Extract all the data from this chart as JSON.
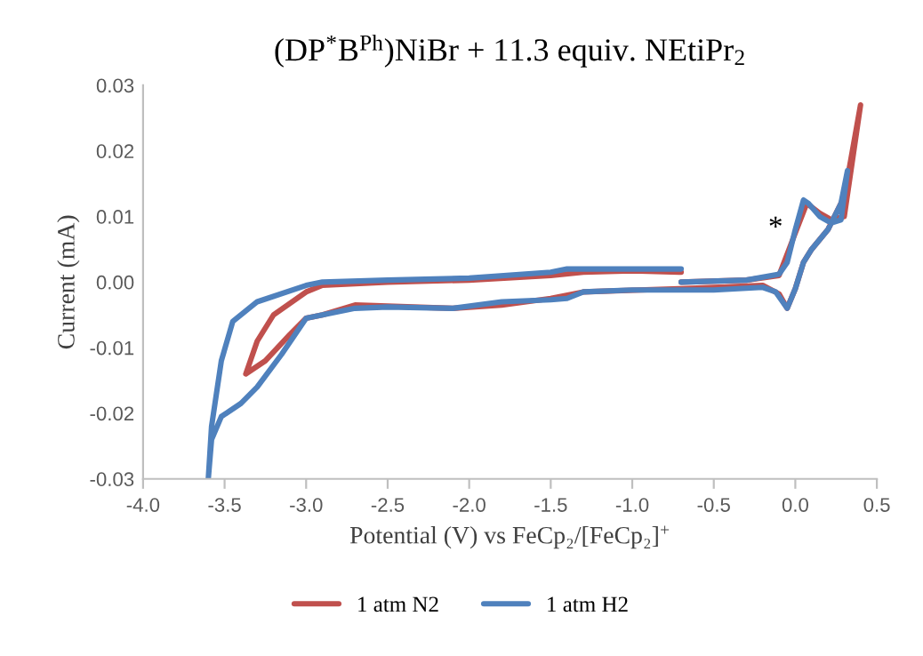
{
  "chart_data": {
    "type": "line",
    "title": "(DP$^{*}$B$^{Ph}$)NiBr + 11.3 equiv. NEtiPr$_{2}$",
    "xlabel": "Potential (V) vs FeCp₂/[FeCp₂]$^{+}$",
    "ylabel": "Current (mA)",
    "xlim": [
      -4.0,
      0.5
    ],
    "ylim": [
      -0.03,
      0.03
    ],
    "xticks": [
      {
        "value": -4.0,
        "label": "-4.0"
      },
      {
        "value": -3.5,
        "label": "-3.5"
      },
      {
        "value": -3.0,
        "label": "-3.0"
      },
      {
        "value": -2.5,
        "label": "-2.5"
      },
      {
        "value": -2.0,
        "label": "-2.0"
      },
      {
        "value": -1.5,
        "label": "-1.5"
      },
      {
        "value": -1.0,
        "label": "-1.0"
      },
      {
        "value": -0.5,
        "label": "-0.5"
      },
      {
        "value": 0.0,
        "label": "0.0"
      },
      {
        "value": 0.5,
        "label": "0.5"
      }
    ],
    "yticks": [
      {
        "value": -0.03,
        "label": "-0.03"
      },
      {
        "value": -0.02,
        "label": "-0.02"
      },
      {
        "value": -0.01,
        "label": "-0.01"
      },
      {
        "value": 0.0,
        "label": "0.00"
      },
      {
        "value": 0.01,
        "label": "0.01"
      },
      {
        "value": 0.02,
        "label": "0.02"
      },
      {
        "value": 0.03,
        "label": "0.03"
      }
    ],
    "grid": false,
    "legend": "bottom",
    "marker": "none",
    "line_style": "solid",
    "annotations": [
      "*"
    ],
    "series": [
      {
        "name": "1 atm N2",
        "color": "#c0504d",
        "x": [
          -0.7,
          -1.0,
          -1.3,
          -1.5,
          -2.0,
          -2.5,
          -2.9,
          -3.0,
          -3.2,
          -3.3,
          -3.37,
          -3.25,
          -3.1,
          -3.0,
          -2.9,
          -2.7,
          -2.1,
          -1.8,
          -1.5,
          -1.3,
          -0.7,
          -0.2,
          -0.1,
          -0.05,
          0.0,
          0.05,
          0.1,
          0.2,
          0.3,
          0.4,
          0.3,
          0.22,
          0.15,
          0.07,
          0.0,
          -0.1,
          -0.3,
          -0.7
        ],
        "values": [
          0.0015,
          0.0017,
          0.0015,
          0.001,
          0.0003,
          0.0,
          -0.0005,
          -0.0015,
          -0.005,
          -0.009,
          -0.014,
          -0.012,
          -0.008,
          -0.0055,
          -0.005,
          -0.0035,
          -0.004,
          -0.0035,
          -0.0025,
          -0.0015,
          -0.001,
          -0.0005,
          -0.0018,
          -0.004,
          -0.001,
          0.003,
          0.005,
          0.008,
          0.013,
          0.027,
          0.01,
          0.0095,
          0.0105,
          0.012,
          0.0075,
          0.001,
          0.0003,
          0.0
        ]
      },
      {
        "name": "1 atm H2",
        "color": "#4f81bd",
        "x": [
          -0.7,
          -1.0,
          -1.4,
          -1.5,
          -2.0,
          -2.5,
          -2.9,
          -3.0,
          -3.3,
          -3.45,
          -3.52,
          -3.58,
          -3.6,
          -3.58,
          -3.52,
          -3.4,
          -3.3,
          -3.15,
          -3.0,
          -2.9,
          -2.7,
          -2.5,
          -2.1,
          -1.8,
          -1.5,
          -1.4,
          -1.3,
          -1.0,
          -0.5,
          -0.2,
          -0.12,
          -0.05,
          0.0,
          0.05,
          0.1,
          0.2,
          0.28,
          0.32,
          0.28,
          0.22,
          0.15,
          0.08,
          0.05,
          0.0,
          -0.05,
          -0.1,
          -0.3,
          -0.7
        ],
        "values": [
          0.002,
          0.002,
          0.002,
          0.0015,
          0.0006,
          0.0003,
          0.0,
          -0.0005,
          -0.003,
          -0.006,
          -0.012,
          -0.022,
          -0.03,
          -0.024,
          -0.0205,
          -0.0185,
          -0.016,
          -0.011,
          -0.0055,
          -0.005,
          -0.004,
          -0.0038,
          -0.004,
          -0.003,
          -0.0027,
          -0.0025,
          -0.0015,
          -0.0012,
          -0.0012,
          -0.0008,
          -0.0015,
          -0.004,
          -0.001,
          0.003,
          0.005,
          0.008,
          0.012,
          0.017,
          0.0095,
          0.009,
          0.01,
          0.012,
          0.0125,
          0.008,
          0.003,
          0.0012,
          0.0003,
          0.0
        ]
      }
    ]
  }
}
